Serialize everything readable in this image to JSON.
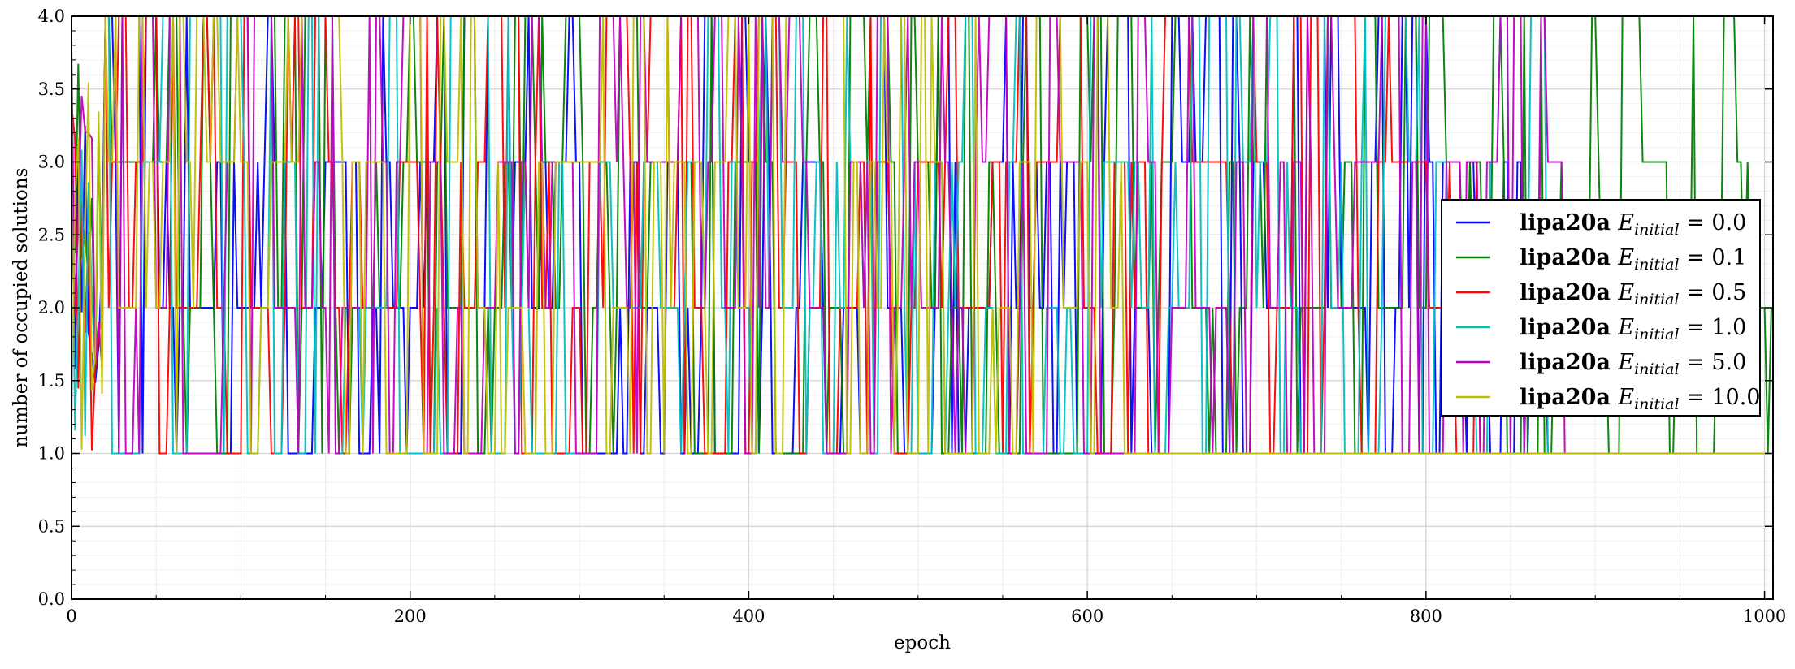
{
  "chart_data": {
    "type": "line",
    "title": "",
    "xlabel": "epoch",
    "ylabel": "number of occupied solutions",
    "xlim": [
      0,
      1005
    ],
    "ylim": [
      0,
      4.0
    ],
    "xticks": [
      0,
      200,
      400,
      600,
      800,
      1000
    ],
    "yticks": [
      0.0,
      0.5,
      1.0,
      1.5,
      2.0,
      2.5,
      3.0,
      3.5,
      4.0
    ],
    "xtick_labels": [
      "0",
      "200",
      "400",
      "600",
      "800",
      "1000"
    ],
    "ytick_labels": [
      "0.0",
      "0.5",
      "1.0",
      "1.5",
      "2.0",
      "2.5",
      "3.0",
      "3.5",
      "4.0"
    ],
    "grid": true,
    "legend_position": "right",
    "series": [
      {
        "name_prefix": "lipa20a",
        "name_var": "E",
        "name_sub": "initial",
        "name_value": "= 0.0",
        "color": "#0000ff",
        "active_until": 870,
        "settle_after": 870
      },
      {
        "name_prefix": "lipa20a",
        "name_var": "E",
        "name_sub": "initial",
        "name_value": "= 0.1",
        "color": "#008000",
        "active_until": 1005,
        "settle_after": 1005
      },
      {
        "name_prefix": "lipa20a",
        "name_var": "E",
        "name_sub": "initial",
        "name_value": "= 0.5",
        "color": "#ff0000",
        "active_until": 830,
        "settle_after": 830
      },
      {
        "name_prefix": "lipa20a",
        "name_var": "E",
        "name_sub": "initial",
        "name_value": "= 1.0",
        "color": "#00bfbf",
        "active_until": 870,
        "settle_after": 870
      },
      {
        "name_prefix": "lipa20a",
        "name_var": "E",
        "name_sub": "initial",
        "name_value": "= 5.0",
        "color": "#bf00bf",
        "active_until": 880,
        "settle_after": 880
      },
      {
        "name_prefix": "lipa20a",
        "name_var": "E",
        "name_sub": "initial",
        "name_value": "= 10.0",
        "color": "#bfbf00",
        "active_until": 625,
        "settle_after": 625
      }
    ],
    "value_levels": [
      1,
      2,
      3,
      4
    ]
  }
}
